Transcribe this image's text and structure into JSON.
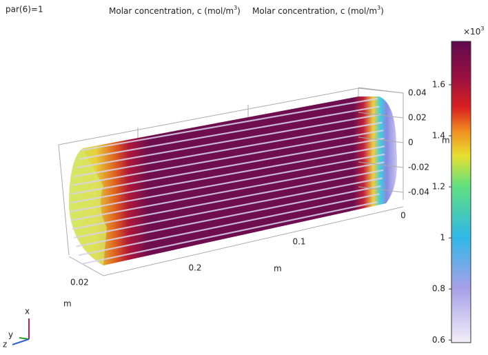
{
  "header": {
    "parameter": "par(6)=1"
  },
  "titles": [
    {
      "text": "Molar concentration, c (mol/m",
      "sup": "3",
      "end": ")"
    },
    {
      "text": "Molar concentration, c (mol/m",
      "sup": "3",
      "end": ")"
    }
  ],
  "z_axis": {
    "ticks": [
      0.04,
      0.02,
      0,
      -0.02,
      -0.04
    ],
    "unit": "m"
  },
  "x_axis": {
    "ticks": [
      0,
      0.1,
      0.2
    ],
    "unit": "m"
  },
  "y_axis": {
    "ticks": [
      0.02
    ],
    "unit": "m"
  },
  "colorbar": {
    "multiplier": "×10",
    "multiplier_sup": "3",
    "range": [
      0.59,
      1.77
    ],
    "ticks": [
      1.6,
      1.4,
      1.2,
      1,
      0.8,
      0.6
    ]
  },
  "triad": {
    "x": "x",
    "y": "y",
    "z": "z"
  }
}
